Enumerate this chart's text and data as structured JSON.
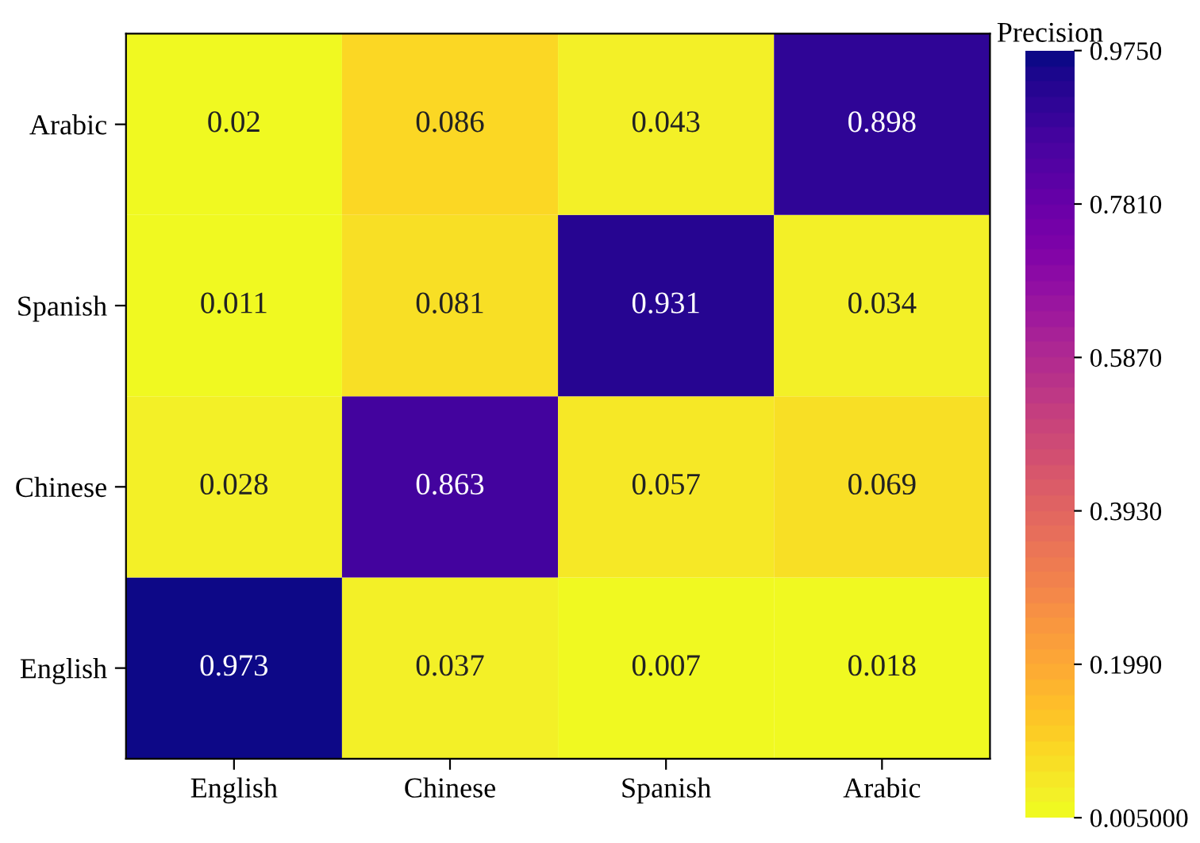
{
  "chart_data": {
    "type": "heatmap",
    "clabel": "Precision",
    "categories": [
      "English",
      "Chinese",
      "Spanish",
      "Arabic"
    ],
    "y_categories": [
      "Arabic",
      "Spanish",
      "Chinese",
      "English"
    ],
    "cells": [
      [
        0.02,
        0.086,
        0.043,
        0.898
      ],
      [
        0.011,
        0.081,
        0.931,
        0.034
      ],
      [
        0.028,
        0.863,
        0.057,
        0.069
      ],
      [
        0.973,
        0.037,
        0.007,
        0.018
      ]
    ],
    "clim": [
      0.005,
      0.975
    ],
    "cticks": [
      {
        "value": 0.005,
        "label": "0.005000"
      },
      {
        "value": 0.199,
        "label": "0.1990"
      },
      {
        "value": 0.393,
        "label": "0.3930"
      },
      {
        "value": 0.587,
        "label": "0.5870"
      },
      {
        "value": 0.781,
        "label": "0.7810"
      },
      {
        "value": 0.975,
        "label": "0.9750"
      }
    ],
    "data_labels": true
  }
}
